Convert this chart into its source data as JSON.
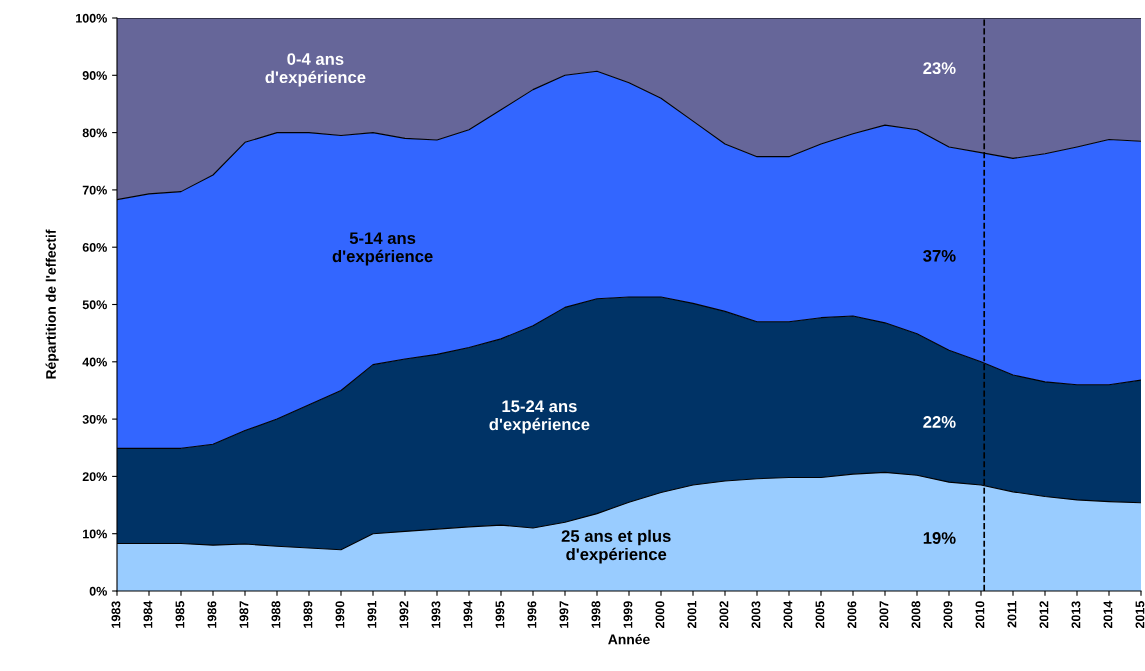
{
  "chart_data": {
    "type": "area",
    "stacked": true,
    "xlabel": "Année",
    "ylabel": "Répartition de l'effectif",
    "x": [
      1983,
      1984,
      1985,
      1986,
      1987,
      1988,
      1989,
      1990,
      1991,
      1992,
      1993,
      1994,
      1995,
      1996,
      1997,
      1998,
      1999,
      2000,
      2001,
      2002,
      2003,
      2004,
      2005,
      2006,
      2007,
      2008,
      2009,
      2010,
      2011,
      2012,
      2013,
      2014,
      2015
    ],
    "series": [
      {
        "name": "25 ans et plus\nd'expérience",
        "color": "#99ccff",
        "values": [
          8.3,
          8.3,
          8.3,
          8.0,
          8.2,
          7.8,
          7.5,
          7.2,
          10.0,
          10.4,
          10.8,
          11.2,
          11.5,
          11.0,
          12.0,
          13.5,
          15.5,
          17.2,
          18.5,
          19.2,
          19.6,
          19.8,
          19.8,
          20.4,
          20.7,
          20.2,
          19.0,
          18.5,
          17.3,
          16.5,
          15.9,
          15.6,
          15.4
        ]
      },
      {
        "name": "15-24 ans\nd'expérience",
        "color": "#003366",
        "values": [
          16.6,
          16.6,
          16.6,
          17.6,
          19.8,
          22.2,
          25.0,
          27.8,
          29.5,
          30.1,
          30.5,
          31.3,
          32.5,
          35.3,
          37.5,
          37.5,
          35.8,
          34.1,
          31.7,
          29.6,
          27.4,
          27.2,
          27.9,
          27.6,
          26.1,
          24.7,
          23.0,
          21.5,
          20.4,
          20.0,
          20.1,
          20.4,
          21.4
        ]
      },
      {
        "name": "5-14 ans\nd'expérience",
        "color": "#3366ff",
        "values": [
          43.4,
          44.4,
          44.8,
          47.0,
          50.3,
          50.0,
          47.5,
          44.5,
          40.5,
          38.5,
          37.4,
          38.0,
          40.0,
          41.2,
          40.5,
          39.7,
          37.4,
          34.7,
          31.8,
          29.2,
          28.8,
          28.8,
          30.3,
          31.8,
          34.5,
          35.6,
          35.5,
          36.5,
          37.8,
          39.8,
          41.5,
          42.8,
          41.7
        ]
      },
      {
        "name": "0-4 ans\nd'expérience",
        "color": "#666699",
        "values": [
          31.7,
          30.7,
          30.3,
          27.4,
          21.7,
          20.0,
          20.0,
          20.5,
          20.0,
          21.0,
          21.3,
          19.5,
          16.0,
          12.5,
          10.0,
          9.3,
          11.3,
          14.0,
          18.0,
          22.0,
          24.2,
          24.2,
          22.0,
          20.2,
          18.7,
          19.5,
          22.5,
          23.5,
          24.5,
          23.7,
          22.5,
          21.2,
          21.5
        ]
      }
    ],
    "annotations": [
      "19%",
      "22%",
      "37%",
      "23%"
    ],
    "ref_lines": [
      {
        "axis": "x",
        "value": 2010.1,
        "color": "#000000",
        "line_style": "dashed"
      }
    ],
    "xlim": [
      1983,
      2015
    ],
    "xticks": [
      1983,
      1984,
      1985,
      1986,
      1987,
      1988,
      1989,
      1990,
      1991,
      1992,
      1993,
      1994,
      1995,
      1996,
      1997,
      1998,
      1999,
      2000,
      2001,
      2002,
      2003,
      2004,
      2005,
      2006,
      2007,
      2008,
      2009,
      2010,
      2011,
      2012,
      2013,
      2014,
      2015
    ],
    "ylim": [
      0,
      100
    ],
    "yticks": [
      {
        "value": 0,
        "label": "0%"
      },
      {
        "value": 10,
        "label": "10%"
      },
      {
        "value": 20,
        "label": "20%"
      },
      {
        "value": 30,
        "label": "30%"
      },
      {
        "value": 40,
        "label": "40%"
      },
      {
        "value": 50,
        "label": "50%"
      },
      {
        "value": 60,
        "label": "60%"
      },
      {
        "value": 70,
        "label": "70%"
      },
      {
        "value": 80,
        "label": "80%"
      },
      {
        "value": 90,
        "label": "90%"
      },
      {
        "value": 100,
        "label": "100%"
      }
    ],
    "grid": false,
    "legend": false
  }
}
